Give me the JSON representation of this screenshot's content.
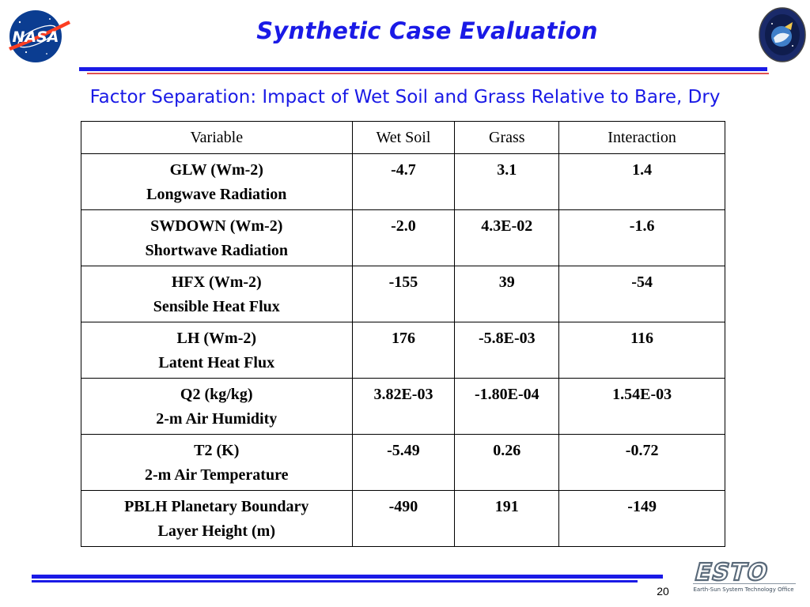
{
  "title": "Synthetic Case Evaluation",
  "subtitle": "Factor Separation: Impact of Wet Soil and Grass Relative to Bare, Dry",
  "table": {
    "headers": [
      "Variable",
      "Wet Soil",
      "Grass",
      "Interaction"
    ],
    "rows": [
      {
        "var1": "GLW (Wm-2)",
        "var2": "Longwave Radiation",
        "wet": "-4.7",
        "grass": "3.1",
        "inter": "1.4"
      },
      {
        "var1": "SWDOWN (Wm-2)",
        "var2": "Shortwave Radiation",
        "wet": "-2.0",
        "grass": "4.3E-02",
        "inter": "-1.6"
      },
      {
        "var1": "HFX (Wm-2)",
        "var2": "Sensible Heat Flux",
        "wet": "-155",
        "grass": "39",
        "inter": "-54"
      },
      {
        "var1": "LH (Wm-2)",
        "var2": "Latent Heat Flux",
        "wet": "176",
        "grass": "-5.8E-03",
        "inter": "116"
      },
      {
        "var1": "Q2 (kg/kg)",
        "var2": "2-m Air Humidity",
        "wet": "3.82E-03",
        "grass": "-1.80E-04",
        "inter": "1.54E-03"
      },
      {
        "var1": "T2 (K)",
        "var2": "2-m Air Temperature",
        "wet": "-5.49",
        "grass": "0.26",
        "inter": "-0.72"
      },
      {
        "var1": "PBLH Planetary Boundary",
        "var2": "Layer Height (m)",
        "wet": "-490",
        "grass": "191",
        "inter": "-149"
      }
    ]
  },
  "logos": {
    "nasa": "NASA",
    "esto": "ESTO",
    "esto_tagline": "Earth-Sun System Technology Office"
  },
  "page_number": "20",
  "colors": {
    "accent_blue": "#1a1ae6",
    "accent_red": "#e05050",
    "nasa_blue": "#0b3d91",
    "nasa_red": "#fc3d21"
  }
}
